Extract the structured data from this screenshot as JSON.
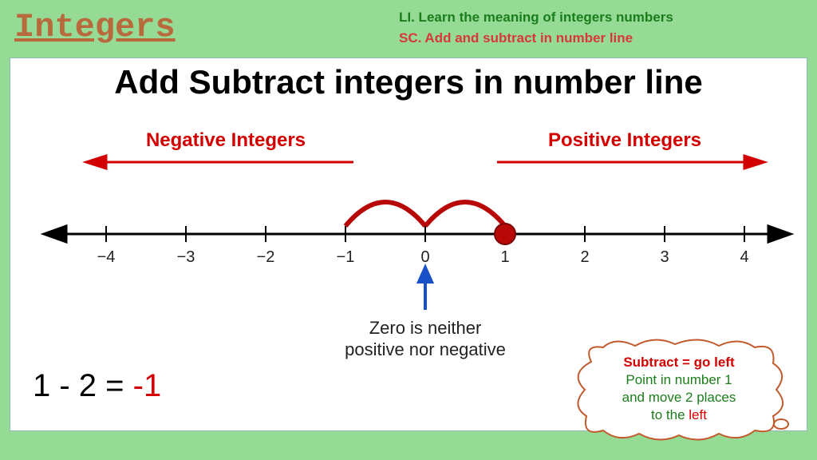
{
  "page_title": "Integers",
  "li": "LI. Learn the meaning of integers numbers",
  "sc": "SC. Add and subtract in number line",
  "panel": {
    "title": "Add Subtract integers in number line",
    "negative_label": "Negative Integers",
    "positive_label": "Positive Integers",
    "number_line": {
      "type": "number_line",
      "min": -4,
      "max": 4,
      "step": 1,
      "tick_values": [
        "−4",
        "−3",
        "−2",
        "−1",
        "0",
        "1",
        "2",
        "3",
        "4"
      ],
      "axis_color": "#000000",
      "axis_width": 2,
      "tick_label_fontsize": 20,
      "tick_label_color": "#222222",
      "marker": {
        "at": 1,
        "radius": 12,
        "fill": "#b70707",
        "stroke": "#7a0404"
      },
      "hops": [
        {
          "from": 1,
          "to": 0,
          "arc_color": "#b70707",
          "arc_width": 5
        },
        {
          "from": 0,
          "to": -1,
          "arc_color": "#b70707",
          "arc_width": 5
        }
      ],
      "zero_pointer": {
        "color": "#1850c8"
      },
      "zero_caption_l1": "Zero is neither",
      "zero_caption_l2": "positive nor negative",
      "region_labels": {
        "color": "#d20000",
        "fontsize": 22
      }
    },
    "equation": {
      "lhs": "1 - 2 = ",
      "answer": "-1"
    },
    "bubble": {
      "outline_color": "#c25a2c",
      "line1": "Subtract = go left",
      "line2a": "Point in number 1",
      "line2b": "and move 2 places",
      "line3_pre": "to the ",
      "line3_word": "left"
    }
  },
  "colors": {
    "page_bg": "#95db95",
    "panel_bg": "#ffffff",
    "title_color": "#b86a3d",
    "li_color": "#1b7d1b",
    "sc_color": "#d83838"
  }
}
